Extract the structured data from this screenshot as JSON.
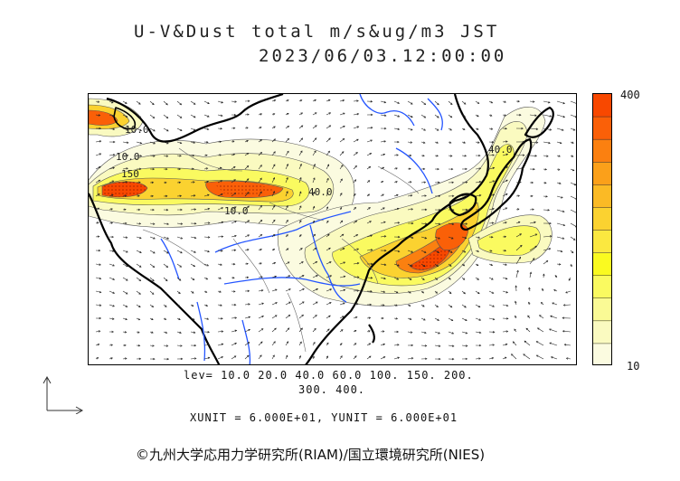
{
  "title": {
    "line1": "U-V&Dust total m/s&ug/m3 JST",
    "line2": "2023/06/03.12:00:00"
  },
  "map": {
    "contour_labels": [
      "10.0",
      "150",
      "10.0",
      "40.0",
      "10.0",
      "40.0"
    ]
  },
  "colorbar": {
    "max_label": "400",
    "min_label": "10",
    "colors": [
      "#fbfbe0",
      "#fafac0",
      "#fafa95",
      "#fafa60",
      "#fafa20",
      "#fbe840",
      "#fbd230",
      "#fbba25",
      "#fba01a",
      "#fb8010",
      "#fa6008",
      "#f84800"
    ]
  },
  "levels": {
    "line1": "lev= 10.0 20.0 40.0 60.0 100. 150. 200.",
    "line2": "300. 400."
  },
  "units_text": "XUNIT = 6.000E+01, YUNIT = 6.000E+01",
  "credit": "©九州大学応用力学研究所(RIAM)/国立環境研究所(NIES)"
}
